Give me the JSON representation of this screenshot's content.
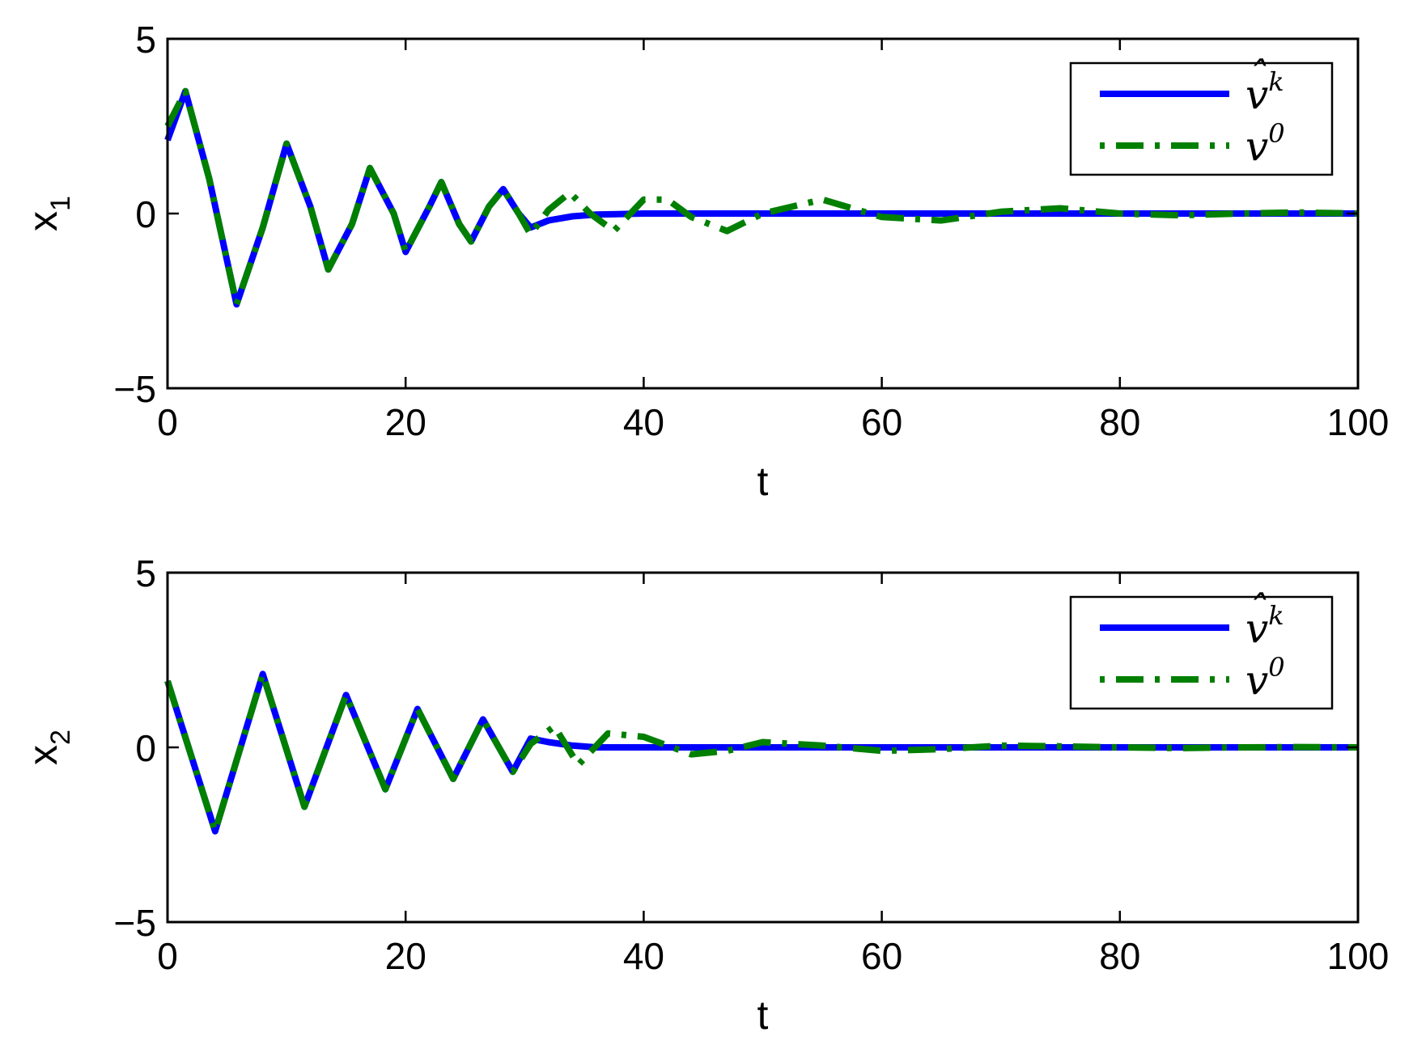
{
  "chart_data": [
    {
      "type": "line",
      "ylabel": "x",
      "ylabel_sub": "1",
      "xlabel": "t",
      "xlim": [
        0,
        100
      ],
      "ylim": [
        -5,
        5
      ],
      "xticks": [
        "0",
        "20",
        "40",
        "60",
        "80",
        "100"
      ],
      "yticks": [
        "5",
        "0",
        "−5"
      ],
      "legend_position": "top-right",
      "series": [
        {
          "name": "v",
          "name_sup": "k",
          "hat": true,
          "color": "#0000ff",
          "style": "solid",
          "x": [
            0,
            1.5,
            3.5,
            5.8,
            8,
            10,
            12,
            13.5,
            15.5,
            17,
            19,
            20,
            22,
            23,
            24.5,
            25.5,
            27,
            28.2,
            29.5,
            30.5,
            32,
            34,
            36,
            40,
            50,
            60,
            70,
            80,
            90,
            100
          ],
          "values": [
            2.1,
            3.5,
            1.0,
            -2.6,
            -0.4,
            2.0,
            0.2,
            -1.6,
            -0.3,
            1.3,
            0.0,
            -1.1,
            0.2,
            0.9,
            -0.3,
            -0.8,
            0.2,
            0.7,
            0.0,
            -0.4,
            -0.2,
            -0.08,
            -0.03,
            0,
            0,
            0,
            0,
            0,
            0,
            0
          ]
        },
        {
          "name": "v",
          "name_sup": "0",
          "hat": false,
          "color": "#007f00",
          "style": "dash-dot",
          "x": [
            0,
            1.5,
            3.5,
            5.8,
            8,
            10,
            12,
            13.5,
            15.5,
            17,
            19,
            20,
            22,
            23,
            24.5,
            25.5,
            27,
            28.2,
            29.5,
            30.5,
            32,
            33.8,
            35.5,
            37.5,
            40,
            42,
            44,
            47,
            50,
            55,
            60,
            65,
            70,
            75,
            80,
            85,
            90,
            95,
            100
          ],
          "values": [
            2.5,
            3.5,
            1.0,
            -2.6,
            -0.4,
            2.0,
            0.2,
            -1.6,
            -0.3,
            1.3,
            0.0,
            -1.1,
            0.2,
            0.9,
            -0.3,
            -0.8,
            0.2,
            0.7,
            0.0,
            -0.6,
            0.1,
            0.6,
            0.0,
            -0.5,
            0.4,
            0.4,
            -0.1,
            -0.5,
            0.0,
            0.4,
            -0.1,
            -0.2,
            0.05,
            0.15,
            0.0,
            -0.05,
            0.0,
            0.03,
            0.0
          ]
        }
      ]
    },
    {
      "type": "line",
      "ylabel": "x",
      "ylabel_sub": "2",
      "xlabel": "t",
      "xlim": [
        0,
        100
      ],
      "ylim": [
        -5,
        5
      ],
      "xticks": [
        "0",
        "20",
        "40",
        "60",
        "80",
        "100"
      ],
      "yticks": [
        "5",
        "0",
        "−5"
      ],
      "legend_position": "top-right",
      "series": [
        {
          "name": "v",
          "name_sup": "k",
          "hat": true,
          "color": "#0000ff",
          "style": "solid",
          "x": [
            0,
            4,
            8,
            11.5,
            15,
            18.3,
            21,
            24,
            26.5,
            29,
            30.5,
            32,
            34,
            36,
            40,
            50,
            60,
            70,
            80,
            90,
            100
          ],
          "values": [
            1.9,
            -2.4,
            2.1,
            -1.7,
            1.5,
            -1.2,
            1.1,
            -0.9,
            0.8,
            -0.7,
            0.25,
            0.15,
            0.05,
            0.0,
            0,
            0,
            0,
            0,
            0,
            0,
            0
          ]
        },
        {
          "name": "v",
          "name_sup": "0",
          "hat": false,
          "color": "#007f00",
          "style": "dash-dot",
          "x": [
            0,
            4,
            8,
            11.5,
            15,
            18.3,
            21,
            24,
            26.5,
            29,
            30.5,
            32.5,
            34.5,
            37,
            40,
            44,
            47,
            50,
            55,
            60,
            65,
            70,
            75,
            80,
            85,
            90,
            95,
            100
          ],
          "values": [
            1.9,
            -2.4,
            2.1,
            -1.7,
            1.5,
            -1.2,
            1.1,
            -0.9,
            0.8,
            -0.7,
            0.1,
            0.6,
            -0.5,
            0.4,
            0.3,
            -0.2,
            -0.1,
            0.15,
            0.05,
            -0.1,
            -0.05,
            0.05,
            0.03,
            0.0,
            -0.02,
            0.0,
            0.01,
            0.0
          ]
        }
      ]
    }
  ]
}
